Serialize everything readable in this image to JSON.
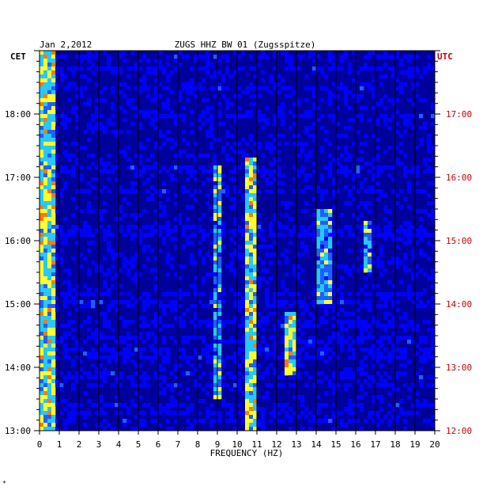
{
  "chart_data": {
    "type": "heatmap",
    "date": "Jan 2,2012",
    "title": "ZUGS HHZ BW 01 (Zugsspitze)",
    "xlabel": "FREQUENCY (HZ)",
    "left_axis_label": "CET",
    "right_axis_label": "UTC",
    "xlim": [
      0,
      20
    ],
    "x_ticks": [
      "0",
      "1",
      "2",
      "3",
      "4",
      "5",
      "6",
      "7",
      "8",
      "9",
      "10",
      "11",
      "12",
      "13",
      "14",
      "15",
      "16",
      "17",
      "18",
      "19",
      "20"
    ],
    "y_range_cet_hours": [
      13,
      19
    ],
    "left_ticks": [
      "13:00",
      "14:00",
      "15:00",
      "16:00",
      "17:00",
      "18:00"
    ],
    "right_ticks": [
      "12:00",
      "13:00",
      "14:00",
      "15:00",
      "16:00",
      "17:00"
    ],
    "colorscale": [
      "#00009a",
      "#0000ff",
      "#1f5fff",
      "#27c8ff",
      "#ffff30",
      "#ff7a00",
      "#e00000"
    ],
    "background_color": "#00009a",
    "label_color_left": "#000000",
    "label_color_right": "#cc0000",
    "spectral_features": [
      {
        "band_hz": [
          0.1,
          0.8
        ],
        "time_cet": [
          13.0,
          19.0
        ],
        "level": "high"
      },
      {
        "band_hz": [
          10.5,
          10.9
        ],
        "time_cet": [
          13.0,
          17.3
        ],
        "level": "high"
      },
      {
        "band_hz": [
          8.9,
          9.2
        ],
        "time_cet": [
          13.5,
          17.2
        ],
        "level": "medium"
      },
      {
        "band_hz": [
          12.5,
          12.9
        ],
        "time_cet": [
          13.9,
          14.9
        ],
        "level": "high"
      },
      {
        "band_hz": [
          14.1,
          14.7
        ],
        "time_cet": [
          15.0,
          16.5
        ],
        "level": "medium"
      },
      {
        "band_hz": [
          16.4,
          16.8
        ],
        "time_cet": [
          15.5,
          16.3
        ],
        "level": "medium"
      }
    ]
  },
  "footer_mark": "*"
}
